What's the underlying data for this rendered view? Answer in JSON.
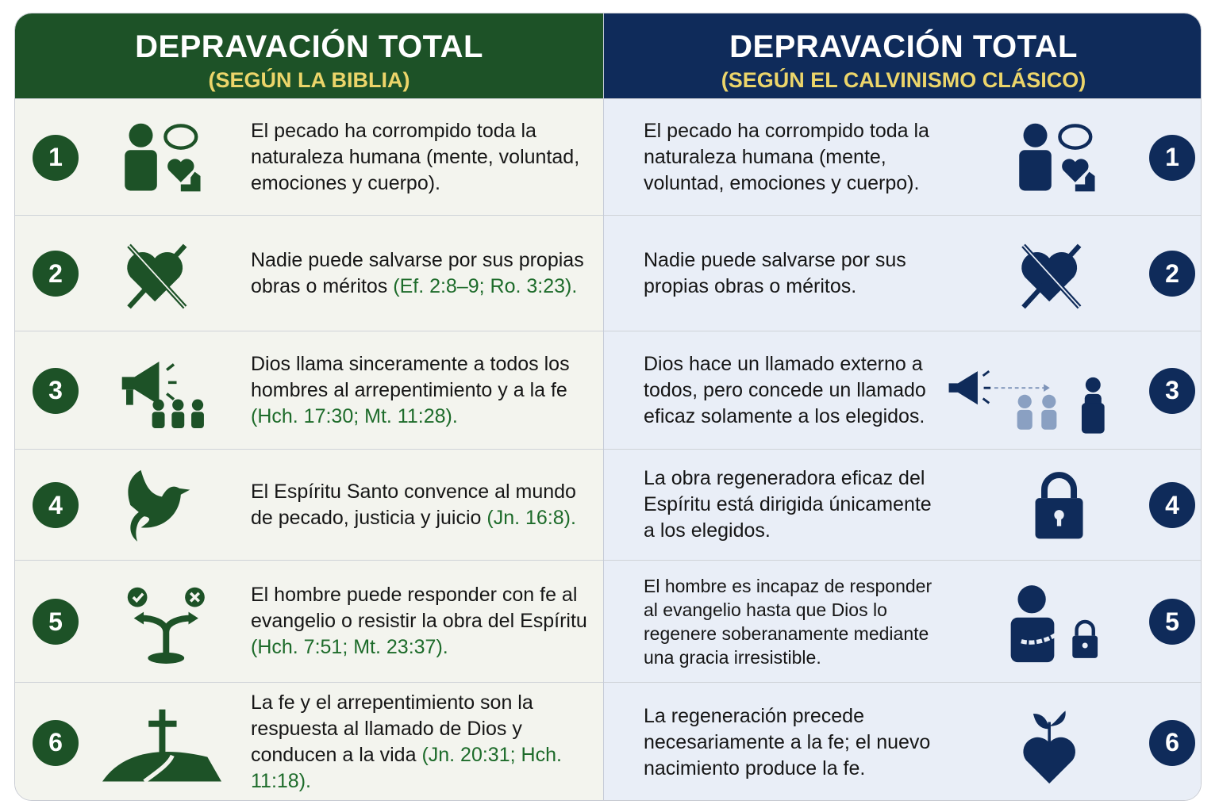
{
  "left": {
    "title": "DEPRAVACIÓN TOTAL",
    "subtitle": "(SEGÚN LA BIBLIA)",
    "rows": [
      {
        "number": 1,
        "text": "El pecado ha corrompido toda la naturaleza humana (mente, voluntad, emociones y cuerpo)."
      },
      {
        "number": 2,
        "text": "Nadie puede salvarse por sus propias obras o méritos",
        "ref": "(Ef. 2:8–9; Ro. 3:23)."
      },
      {
        "number": 3,
        "text": "Dios llama sinceramente a todos los hombres al arrepentimiento y a la fe",
        "ref": "(Hch. 17:30; Mt. 11:28)."
      },
      {
        "number": 4,
        "text": "El Espíritu Santo convence al mundo de pecado, justicia y juicio",
        "ref": "(Jn. 16:8)."
      },
      {
        "number": 5,
        "text": "El hombre puede responder con fe al evangelio o resistir la obra del Espíritu",
        "ref": "(Hch. 7:51; Mt. 23:37)."
      },
      {
        "number": 6,
        "text": "La fe y el arrepentimiento son la respuesta al llamado de Dios y conducen a la vida",
        "ref": "(Jn. 20:31; Hch. 11:18)."
      }
    ]
  },
  "right": {
    "title": "DEPRAVACIÓN TOTAL",
    "subtitle": "(SEGÚN EL CALVINISMO CLÁSICO)",
    "rows": [
      {
        "number": 1,
        "text": "El pecado ha corrompido toda la naturaleza humana (mente, voluntad, emociones y cuerpo)."
      },
      {
        "number": 2,
        "text": "Nadie puede salvarse por sus propias obras o méritos."
      },
      {
        "number": 3,
        "text": "Dios hace un llamado externo a todos, pero concede un llamado eficaz solamente a los elegidos."
      },
      {
        "number": 4,
        "text": "La obra regeneradora eficaz del Espíritu está dirigida únicamente a los elegidos."
      },
      {
        "number": 5,
        "text": "El hombre es incapaz de responder al evangelio hasta que Dios lo regenere soberanamente mediante una gracia irresistible."
      },
      {
        "number": 6,
        "text": "La regeneración precede necesariamente a la fe; el nuevo nacimiento produce la fe."
      }
    ]
  }
}
